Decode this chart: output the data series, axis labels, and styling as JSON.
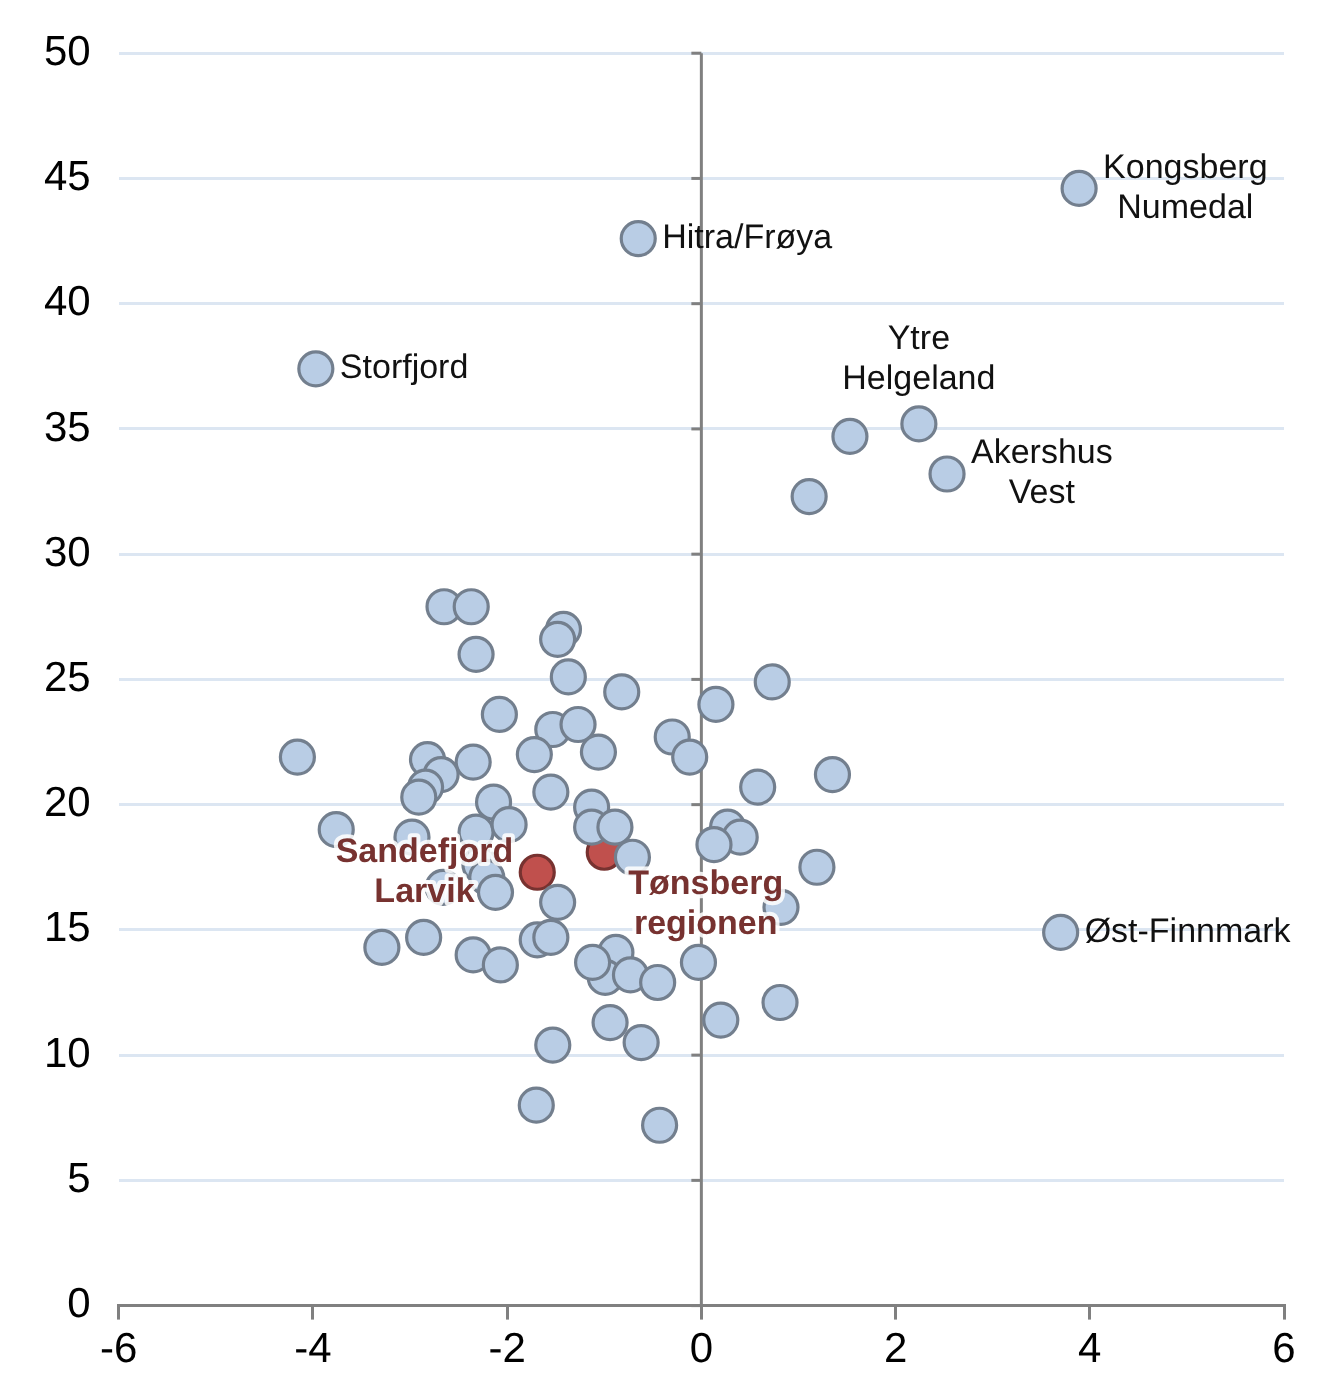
{
  "chart_data": {
    "type": "scatter",
    "xlim": [
      -6,
      6
    ],
    "xticks": [
      -6,
      -4,
      -2,
      0,
      2,
      4,
      6
    ],
    "ylim": [
      0,
      50
    ],
    "yticks": [
      0,
      5,
      10,
      15,
      20,
      25,
      30,
      35,
      40,
      45,
      50
    ],
    "grid": "y",
    "legend": false,
    "marker": "circle",
    "series": [
      {
        "color": "#b9cde5",
        "x": [
          -0.65,
          3.89,
          -3.97,
          2.24,
          1.53,
          2.53,
          1.11,
          3.7,
          -2.65,
          -2.37,
          -1.42,
          -1.48,
          -2.32,
          -1.37,
          -0.82,
          0.15,
          0.73,
          -2.08,
          -1.53,
          -1.27,
          -0.3,
          -0.12,
          -1.06,
          -1.72,
          -4.16,
          -2.82,
          -2.35,
          -2.68,
          -2.84,
          -2.91,
          0.58,
          1.35,
          -1.55,
          -2.14,
          -1.13,
          -3.76,
          -2.98,
          -2.32,
          -1.98,
          -1.13,
          -0.89,
          0.27,
          0.4,
          0.13,
          -0.71,
          1.19,
          -2.28,
          -2.21,
          -2.12,
          -2.66,
          -1.48,
          0.82,
          -1.69,
          -1.55,
          -3.29,
          -2.86,
          -2.35,
          -2.07,
          -0.88,
          -0.99,
          -0.73,
          -0.45,
          -0.03,
          -1.12,
          -0.94,
          -0.62,
          0.2,
          0.81,
          -1.53,
          -1.7,
          -0.43
        ],
        "values": [
          42.6,
          44.6,
          37.4,
          35.2,
          34.7,
          33.2,
          32.3,
          14.9,
          27.9,
          27.9,
          27.0,
          26.6,
          26.0,
          25.1,
          24.5,
          24.0,
          24.9,
          23.6,
          23.0,
          23.2,
          22.7,
          21.9,
          22.1,
          22.0,
          21.9,
          21.8,
          21.7,
          21.2,
          20.7,
          20.3,
          20.7,
          21.2,
          20.5,
          20.1,
          19.9,
          19.0,
          18.7,
          18.9,
          19.2,
          19.1,
          19.1,
          19.1,
          18.7,
          18.4,
          17.9,
          17.5,
          17.6,
          17.1,
          16.5,
          16.7,
          16.1,
          15.9,
          14.6,
          14.7,
          14.3,
          14.7,
          14.0,
          13.6,
          14.1,
          13.1,
          13.2,
          12.9,
          13.7,
          13.7,
          11.3,
          10.5,
          11.4,
          12.1,
          10.4,
          8.0,
          7.2
        ]
      },
      {
        "color": "#c0504d",
        "x": [
          -1.69,
          -1.0
        ],
        "values": [
          17.3,
          18.1
        ]
      }
    ],
    "annotations": [
      {
        "text": "Hitra/Frøya",
        "x": -0.65,
        "y": 42.6
      },
      {
        "text": "Kongsberg Numedal",
        "x": 3.89,
        "y": 44.6
      },
      {
        "text": "Storfjord",
        "x": -3.97,
        "y": 37.4
      },
      {
        "text": "Ytre Helgeland",
        "x": 2.24,
        "y": 35.2
      },
      {
        "text": "Akershus Vest",
        "x": 2.53,
        "y": 33.2
      },
      {
        "text": "Øst-Finnmark",
        "x": 3.7,
        "y": 14.9
      },
      {
        "text": "Tønsberg regionen",
        "x": -1.0,
        "y": 18.1
      },
      {
        "text": "Sandefjord Larvik",
        "x": -1.69,
        "y": 17.3
      }
    ]
  }
}
